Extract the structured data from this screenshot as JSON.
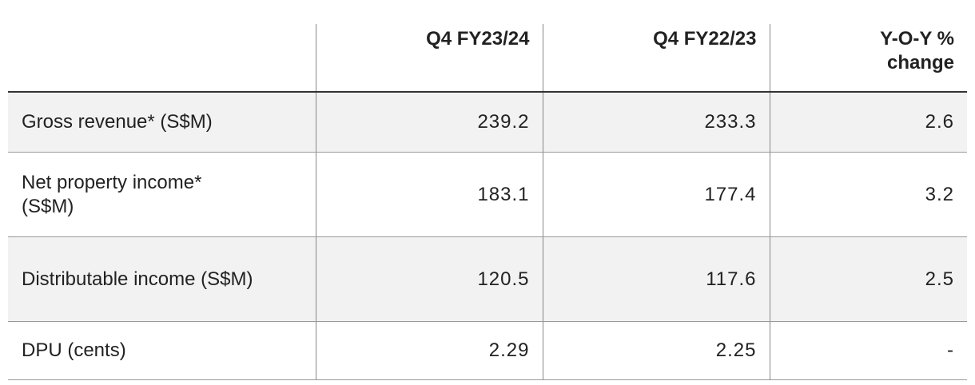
{
  "table": {
    "headers": [
      "Q4 FY23/24",
      "Q4 FY22/23",
      "Y-O-Y % change"
    ],
    "rows": [
      [
        "Gross revenue* (S$M)",
        239.2,
        233.3,
        2.6
      ],
      [
        "Net property income* (S$M)",
        183.1,
        177.4,
        3.2
      ],
      [
        "Distributable income (S$M)",
        120.5,
        117.6,
        2.5
      ],
      [
        "DPU (cents)",
        2.29,
        2.25,
        "-"
      ]
    ]
  }
}
